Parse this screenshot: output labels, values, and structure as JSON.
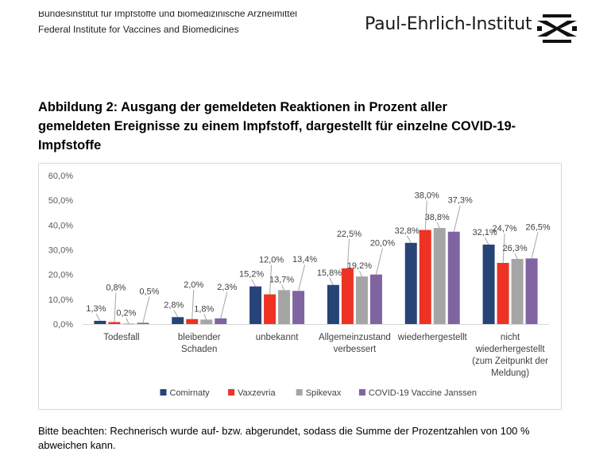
{
  "header": {
    "line1": "Bundesinstitut für Impfstoffe und biomedizinische Arzneimittel",
    "line2": "Federal Institute for Vaccines and Biomedicines",
    "institute_name": "Paul-Ehrlich-Institut",
    "logo_icon": "pei-logo-icon"
  },
  "figure": {
    "title": "Abbildung 2: Ausgang der gemeldeten Reaktionen in Prozent aller gemeldeten Ereignisse zu einem Impfstoff, dargestellt für einzelne COVID-19-Impfstoffe"
  },
  "chart_data": {
    "type": "bar",
    "categories": [
      [
        "Todesfall"
      ],
      [
        "bleibender",
        "Schaden"
      ],
      [
        "unbekannt"
      ],
      [
        "Allgemeinzustand",
        "verbessert"
      ],
      [
        "wiederhergestellt"
      ],
      [
        "nicht",
        "wiederhergestellt",
        "(zum Zeitpunkt der",
        "Meldung)"
      ]
    ],
    "series": [
      {
        "name": "Comirnaty",
        "color": "#264478",
        "values": [
          1.3,
          2.8,
          15.2,
          15.8,
          32.8,
          32.1
        ],
        "labels": [
          "1,3%",
          "2,8%",
          "15,2%",
          "15,8%",
          "32,8%",
          "32,1%"
        ]
      },
      {
        "name": "Vaxzevria",
        "color": "#ee3224",
        "values": [
          0.8,
          2.0,
          12.0,
          22.5,
          38.0,
          24.7
        ],
        "labels": [
          "0,8%",
          "2,0%",
          "12,0%",
          "22,5%",
          "38,0%",
          "24,7%"
        ]
      },
      {
        "name": "Spikevax",
        "color": "#a5a5a5",
        "values": [
          0.2,
          1.8,
          13.7,
          19.2,
          38.8,
          26.3
        ],
        "labels": [
          "0,2%",
          "1,8%",
          "13,7%",
          "19,2%",
          "38,8%",
          "26,3%"
        ]
      },
      {
        "name": "COVID-19 Vaccine Janssen",
        "color": "#8064a2",
        "values": [
          0.5,
          2.3,
          13.4,
          20.0,
          37.3,
          26.5
        ],
        "labels": [
          "0,5%",
          "2,3%",
          "13,4%",
          "20,0%",
          "37,3%",
          "26,5%"
        ]
      }
    ],
    "ylim": [
      0,
      60
    ],
    "yticks": [
      "0,0%",
      "10,0%",
      "20,0%",
      "30,0%",
      "40,0%",
      "50,0%",
      "60,0%"
    ],
    "grid": false,
    "legend_position": "bottom"
  },
  "note": {
    "text": "Bitte beachten: Rechnerisch wurde auf- bzw. abgerundet, sodass die Summe der Prozentzahlen von 100 % abweichen kann."
  }
}
